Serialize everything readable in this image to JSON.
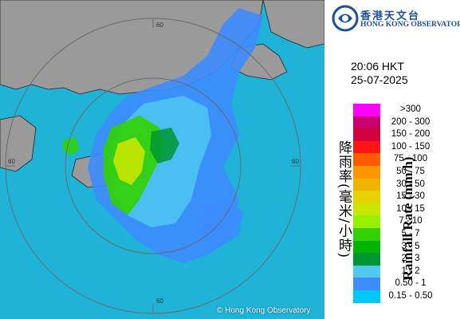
{
  "logo": {
    "org_cn": "香港天文台",
    "org_en": "HONG KONG OBSERVATORY"
  },
  "timestamp": {
    "time": "20:06 HKT",
    "date": "25-07-2025"
  },
  "radar": {
    "credit": "© Hong Kong Observatory",
    "range_ring_labels": [
      "60",
      "60",
      "60",
      "60"
    ],
    "colors": {
      "sea": "#1fb3d8",
      "land": "#9a9a9a",
      "rings": "#6b6b6b",
      "coast": "#222222"
    }
  },
  "legend": {
    "title_cn": "降雨率(毫米/小時)",
    "title_en": "Rainfall Rate (mm/h)",
    "items": [
      {
        "label": ">300",
        "color": "#ff00ff"
      },
      {
        "label": "200 - 300",
        "color": "#c8006e"
      },
      {
        "label": "150 - 200",
        "color": "#d2003c"
      },
      {
        "label": "100 - 150",
        "color": "#ff1414"
      },
      {
        "label": "75 - 100",
        "color": "#ff5a00"
      },
      {
        "label": "50 - 75",
        "color": "#ff9600"
      },
      {
        "label": "30 - 50",
        "color": "#f0b400"
      },
      {
        "label": "15 - 30",
        "color": "#e6d200"
      },
      {
        "label": "10 - 15",
        "color": "#c8e600"
      },
      {
        "label": "7 - 10",
        "color": "#96f000"
      },
      {
        "label": "5 - 7",
        "color": "#32d200"
      },
      {
        "label": "3 - 5",
        "color": "#00b400"
      },
      {
        "label": "2 - 3",
        "color": "#009632"
      },
      {
        "label": "1 - 2",
        "color": "#50c8f0"
      },
      {
        "label": "0.50 - 1",
        "color": "#3c8cff"
      },
      {
        "label": "0.15 - 0.50",
        "color": "#00c8ff"
      }
    ]
  }
}
